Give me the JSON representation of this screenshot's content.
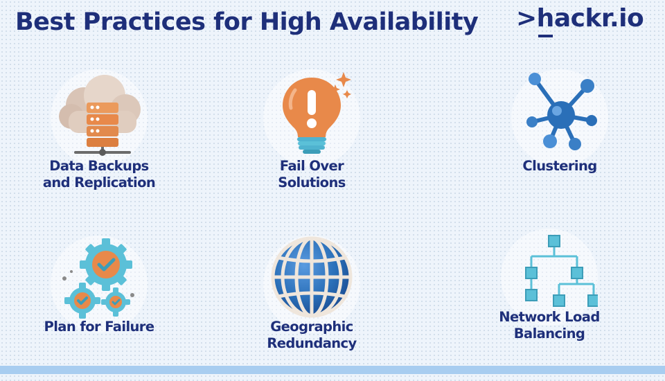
{
  "title": "Best Practices for High Availability",
  "logo": {
    "prefix": ">",
    "h": "h",
    "rest": "ackr.io"
  },
  "colors": {
    "navy": "#1e2f7a",
    "orange": "#e8894a",
    "teal": "#5bc0d8",
    "blue": "#2a6fb8"
  },
  "items": [
    {
      "icon": "cloud-server-icon",
      "line1": "Data Backups",
      "line2": "and Replication"
    },
    {
      "icon": "lightbulb-icon",
      "line1": "Fail Over",
      "line2": "Solutions"
    },
    {
      "icon": "cluster-network-icon",
      "line1": "Clustering",
      "line2": ""
    },
    {
      "icon": "gears-check-icon",
      "line1": "Plan for Failure",
      "line2": ""
    },
    {
      "icon": "globe-icon",
      "line1": "Geographic",
      "line2": "Redundancy"
    },
    {
      "icon": "hierarchy-tree-icon",
      "line1": "Network Load",
      "line2": "Balancing"
    }
  ]
}
